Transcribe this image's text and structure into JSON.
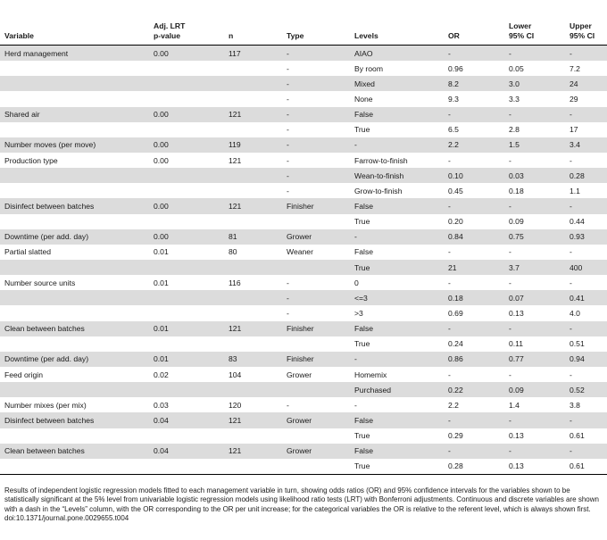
{
  "table": {
    "headers": [
      "Variable",
      "Adj. LRT\np-value",
      "n",
      "Type",
      "Levels",
      "OR",
      "Lower\n95% CI",
      "Upper\n95% CI"
    ],
    "rows": [
      [
        "Herd management",
        "0.00",
        "117",
        "-",
        "AIAO",
        "-",
        "-",
        "-"
      ],
      [
        "",
        "",
        "",
        "-",
        "By room",
        "0.96",
        "0.05",
        "7.2"
      ],
      [
        "",
        "",
        "",
        "-",
        "Mixed",
        "8.2",
        "3.0",
        "24"
      ],
      [
        "",
        "",
        "",
        "-",
        "None",
        "9.3",
        "3.3",
        "29"
      ],
      [
        "Shared air",
        "0.00",
        "121",
        "-",
        "False",
        "-",
        "-",
        "-"
      ],
      [
        "",
        "",
        "",
        "-",
        "True",
        "6.5",
        "2.8",
        "17"
      ],
      [
        "Number moves (per move)",
        "0.00",
        "119",
        "-",
        "-",
        "2.2",
        "1.5",
        "3.4"
      ],
      [
        "Production type",
        "0.00",
        "121",
        "-",
        "Farrow-to-finish",
        "-",
        "-",
        "-"
      ],
      [
        "",
        "",
        "",
        "-",
        "Wean-to-finish",
        "0.10",
        "0.03",
        "0.28"
      ],
      [
        "",
        "",
        "",
        "-",
        "Grow-to-finish",
        "0.45",
        "0.18",
        "1.1"
      ],
      [
        "Disinfect between batches",
        "0.00",
        "121",
        "Finisher",
        "False",
        "-",
        "-",
        "-"
      ],
      [
        "",
        "",
        "",
        "",
        "True",
        "0.20",
        "0.09",
        "0.44"
      ],
      [
        "Downtime (per add. day)",
        "0.00",
        "81",
        "Grower",
        "-",
        "0.84",
        "0.75",
        "0.93"
      ],
      [
        "Partial slatted",
        "0.01",
        "80",
        "Weaner",
        "False",
        "-",
        "-",
        "-"
      ],
      [
        "",
        "",
        "",
        "",
        "True",
        "21",
        "3.7",
        "400"
      ],
      [
        "Number source units",
        "0.01",
        "116",
        "-",
        "0",
        "-",
        "-",
        "-"
      ],
      [
        "",
        "",
        "",
        "-",
        "<=3",
        "0.18",
        "0.07",
        "0.41"
      ],
      [
        "",
        "",
        "",
        "-",
        ">3",
        "0.69",
        "0.13",
        "4.0"
      ],
      [
        "Clean between batches",
        "0.01",
        "121",
        "Finisher",
        "False",
        "-",
        "-",
        "-"
      ],
      [
        "",
        "",
        "",
        "",
        "True",
        "0.24",
        "0.11",
        "0.51"
      ],
      [
        "Downtime (per add. day)",
        "0.01",
        "83",
        "Finisher",
        "-",
        "0.86",
        "0.77",
        "0.94"
      ],
      [
        "Feed origin",
        "0.02",
        "104",
        "Grower",
        "Homemix",
        "-",
        "-",
        "-"
      ],
      [
        "",
        "",
        "",
        "",
        "Purchased",
        "0.22",
        "0.09",
        "0.52"
      ],
      [
        "Number mixes (per mix)",
        "0.03",
        "120",
        "-",
        "-",
        "2.2",
        "1.4",
        "3.8"
      ],
      [
        "Disinfect between batches",
        "0.04",
        "121",
        "Grower",
        "False",
        "-",
        "-",
        "-"
      ],
      [
        "",
        "",
        "",
        "",
        "True",
        "0.29",
        "0.13",
        "0.61"
      ],
      [
        "Clean between batches",
        "0.04",
        "121",
        "Grower",
        "False",
        "-",
        "-",
        "-"
      ],
      [
        "",
        "",
        "",
        "",
        "True",
        "0.28",
        "0.13",
        "0.61"
      ]
    ],
    "shading": [
      1,
      0,
      1,
      0,
      1,
      0,
      1,
      0,
      1,
      0,
      1,
      0,
      1,
      0,
      1,
      0,
      1,
      0,
      1,
      0,
      1,
      0,
      1,
      0,
      1,
      0,
      1,
      0
    ]
  },
  "caption": {
    "text": "Results of independent logistic regression models fitted to each management variable in turn, showing odds ratios (OR) and 95% confidence intervals for the variables shown to be statistically significant at the 5% level from univariable logistic regression models using likelihood ratio tests (LRT) with Bonferroni adjustments. Continuous and discrete variables are shown with a dash in the “Levels” column, with the OR corresponding to the OR per unit increase; for the categorical variables the OR is relative to the referent level, which is always shown first.",
    "doi": "doi:10.1371/journal.pone.0029655.t004"
  }
}
